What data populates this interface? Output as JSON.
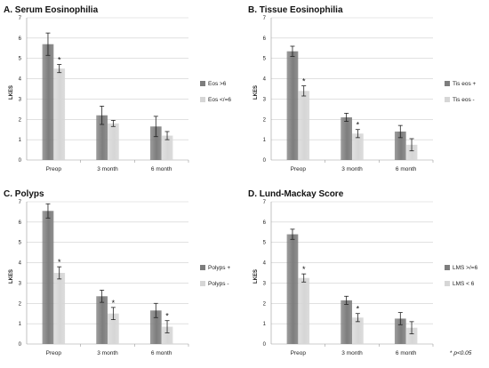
{
  "footnote": {
    "star": "*",
    "text": "p<0.05"
  },
  "colors": {
    "series1": "#7d7d7d",
    "series2": "#d6d6d6",
    "grid": "#cfcfcf",
    "axis": "#9a9a9a"
  },
  "chart_data": [
    {
      "type": "bar",
      "title": "A. Serum Eosinophilia",
      "ylabel": "LKES",
      "ylim": [
        0,
        7
      ],
      "yticks": [
        "0",
        "1",
        "2",
        "3",
        "4",
        "5",
        "6",
        "7"
      ],
      "categories": [
        "Preop",
        "3 month",
        "6 month"
      ],
      "series": [
        {
          "name": "Eos >6",
          "values": [
            5.7,
            2.2,
            1.65
          ],
          "errors": [
            0.55,
            0.45,
            0.5
          ]
        },
        {
          "name": "Eos </=6",
          "values": [
            4.5,
            1.8,
            1.2
          ],
          "errors": [
            0.2,
            0.15,
            0.2
          ]
        }
      ],
      "significance": [
        "*",
        "",
        ""
      ],
      "grid": true,
      "legend": "right"
    },
    {
      "type": "bar",
      "title": "B. Tissue Eosinophilia",
      "ylabel": "LKES",
      "ylim": [
        0,
        7
      ],
      "yticks": [
        "0",
        "1",
        "2",
        "3",
        "4",
        "5",
        "6",
        "7"
      ],
      "categories": [
        "Preop",
        "3 month",
        "6 month"
      ],
      "series": [
        {
          "name": "Tis eos +",
          "values": [
            5.35,
            2.1,
            1.4
          ],
          "errors": [
            0.25,
            0.2,
            0.3
          ]
        },
        {
          "name": "Tis eos -",
          "values": [
            3.4,
            1.3,
            0.75
          ],
          "errors": [
            0.25,
            0.2,
            0.3
          ]
        }
      ],
      "significance": [
        "*",
        "*",
        ""
      ],
      "grid": true,
      "legend": "right"
    },
    {
      "type": "bar",
      "title": "C. Polyps",
      "ylabel": "LKES",
      "ylim": [
        0,
        7
      ],
      "yticks": [
        "0",
        "1",
        "2",
        "3",
        "4",
        "5",
        "6",
        "7"
      ],
      "categories": [
        "Preop",
        "3 month",
        "6 month"
      ],
      "series": [
        {
          "name": "Polyps +",
          "values": [
            6.55,
            2.35,
            1.65
          ],
          "errors": [
            0.35,
            0.3,
            0.35
          ]
        },
        {
          "name": "Polyps -",
          "values": [
            3.5,
            1.5,
            0.85
          ],
          "errors": [
            0.3,
            0.3,
            0.3
          ]
        }
      ],
      "significance": [
        "*",
        "*",
        "*"
      ],
      "grid": true,
      "legend": "right"
    },
    {
      "type": "bar",
      "title": "D. Lund-Mackay Score",
      "ylabel": "LKES",
      "ylim": [
        0,
        7
      ],
      "yticks": [
        "0",
        "1",
        "2",
        "3",
        "4",
        "5",
        "6",
        "7"
      ],
      "categories": [
        "Preop",
        "3 month",
        "6 month"
      ],
      "series": [
        {
          "name": "LMS >/=6",
          "values": [
            5.4,
            2.15,
            1.25
          ],
          "errors": [
            0.25,
            0.2,
            0.3
          ]
        },
        {
          "name": "LMS < 6",
          "values": [
            3.25,
            1.3,
            0.8
          ],
          "errors": [
            0.2,
            0.2,
            0.3
          ]
        }
      ],
      "significance": [
        "*",
        "*",
        ""
      ],
      "grid": true,
      "legend": "right"
    }
  ]
}
